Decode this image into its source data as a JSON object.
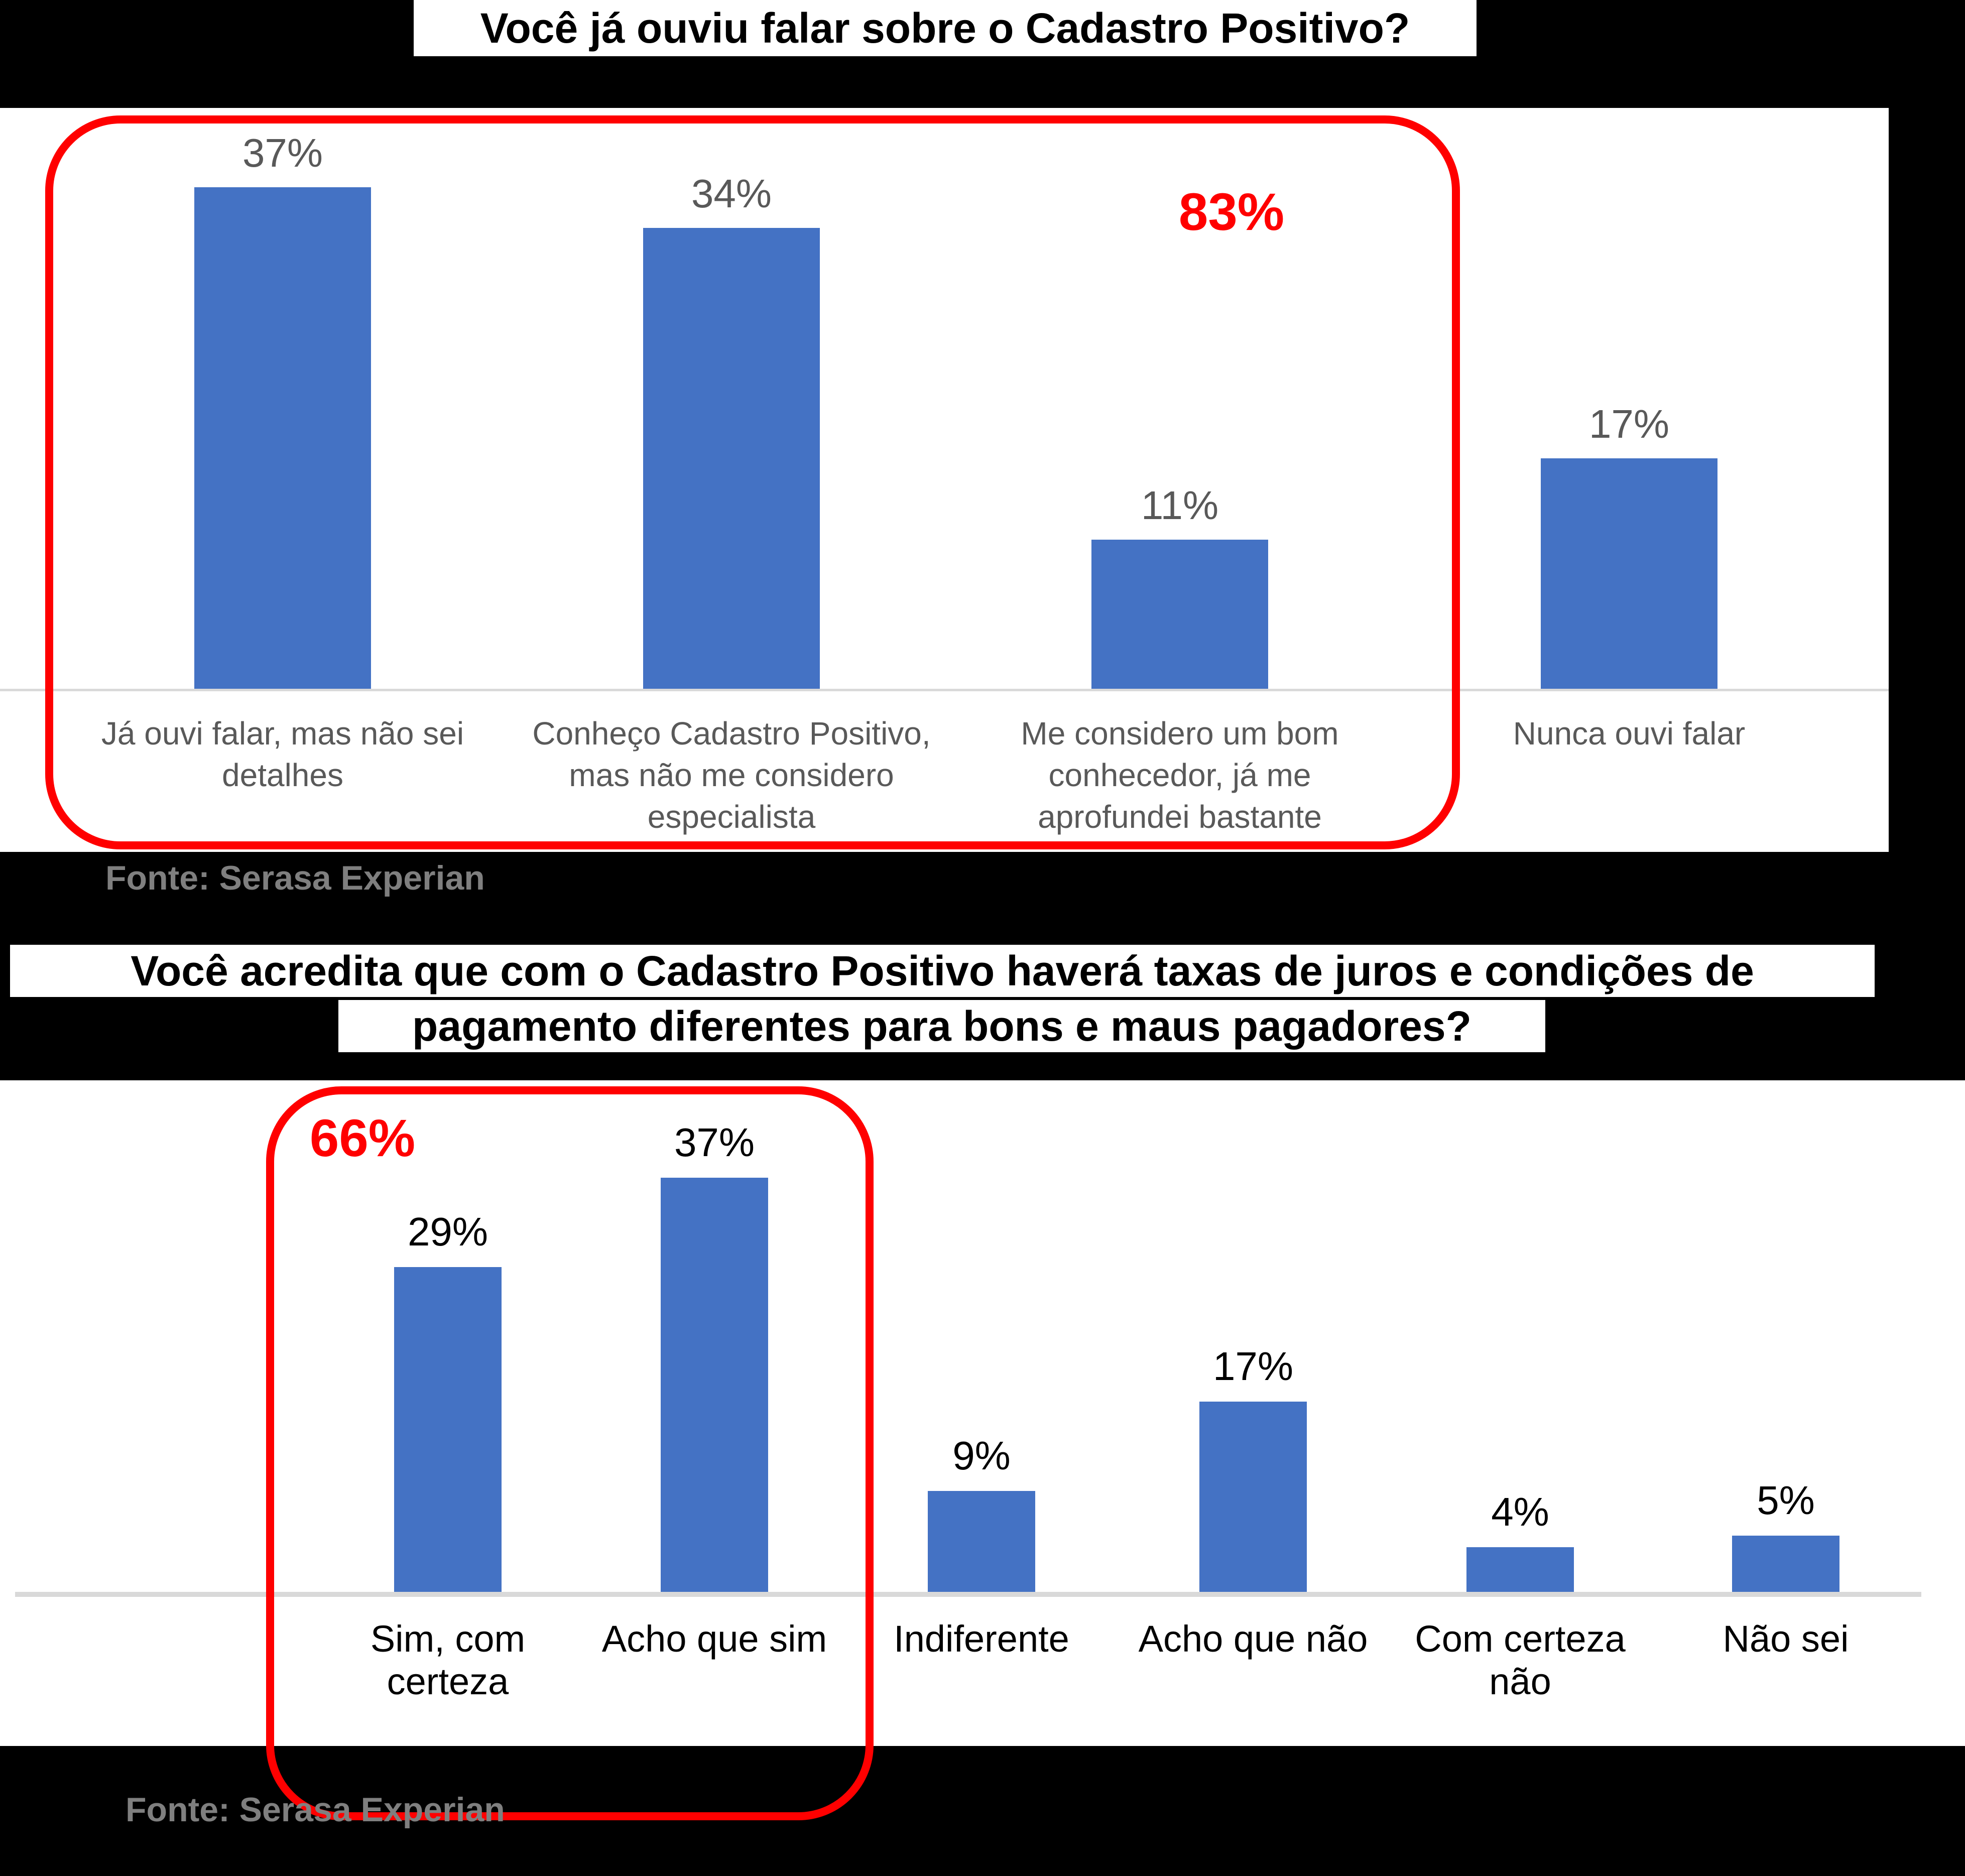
{
  "page": {
    "background_color": "#000000",
    "panel_color": "#FFFFFF"
  },
  "chart_data": [
    {
      "type": "bar",
      "title": "Você já ouviu falar sobre o Cadastro Positivo?",
      "categories": [
        "Já ouvi falar, mas não sei\ndetalhes",
        "Conheço Cadastro Positivo,\nmas não me considero\nespecialista",
        "Me considero um bom\nconhecedor, já me\naprofundei bastante",
        "Nunca ouvi falar"
      ],
      "values": [
        37,
        34,
        11,
        17
      ],
      "value_labels": [
        "37%",
        "34%",
        "11%",
        "17%"
      ],
      "annotation": {
        "label": "83%",
        "color": "#FF0000",
        "highlight_first_n_bars": 3
      },
      "source": "Fonte: Serasa Experian",
      "bar_color": "#4472C4",
      "value_label_color": "#595959",
      "category_label_color": "#595959",
      "axis_color": "#D9D9D9",
      "xlabel": "",
      "ylabel": "",
      "ylim": [
        0,
        43
      ],
      "grid": false,
      "legend": false
    },
    {
      "type": "bar",
      "title": "Você acredita que com o Cadastro Positivo haverá taxas de juros e condições de pagamento diferentes para bons e maus pagadores?",
      "title_lines": [
        "Você acredita que com o Cadastro Positivo haverá taxas de juros e condições de",
        "pagamento diferentes para bons e maus pagadores?"
      ],
      "categories": [
        "Sim, com\ncerteza",
        "Acho que sim",
        "Indiferente",
        "Acho que não",
        "Com certeza\nnão",
        "Não sei"
      ],
      "values": [
        29,
        37,
        9,
        17,
        4,
        5
      ],
      "value_labels": [
        "29%",
        "37%",
        "9%",
        "17%",
        "4%",
        "5%"
      ],
      "annotation": {
        "label": "66%",
        "color": "#FF0000",
        "highlight_first_n_bars": 2
      },
      "source": "Fonte: Serasa Experian",
      "bar_color": "#4472C4",
      "value_label_color": "#000000",
      "category_label_color": "#000000",
      "axis_color": "#D9D9D9",
      "xlabel": "",
      "ylabel": "",
      "ylim": [
        0,
        46
      ],
      "grid": false,
      "legend": false
    }
  ]
}
